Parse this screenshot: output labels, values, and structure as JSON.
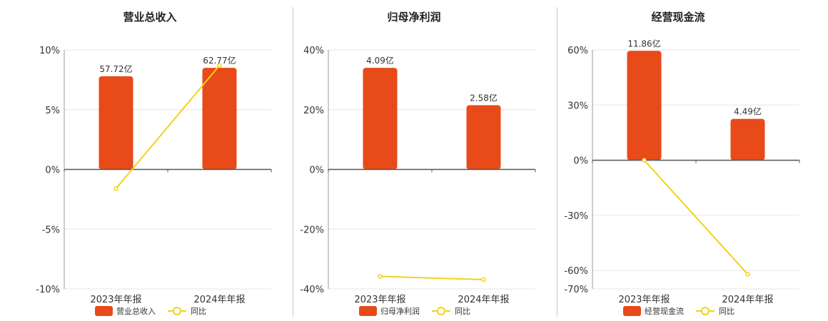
{
  "chart_data": [
    {
      "type": "bar",
      "title": "营业总收入",
      "categories": [
        "2023年年报",
        "2024年年报"
      ],
      "bar_labels": [
        "57.72亿",
        "62.77亿"
      ],
      "ylim": [
        -10,
        10
      ],
      "yticks": [
        10,
        5,
        0,
        -5,
        -10
      ],
      "ytick_labels": [
        "10%",
        "5%",
        "0%",
        "-5%",
        "-10%"
      ],
      "grid": true,
      "legend_position": "bottom",
      "series": [
        {
          "name": "营业总收入",
          "kind": "bar",
          "color": "#e84a1a",
          "values": [
            7.8,
            8.5
          ]
        },
        {
          "name": "同比",
          "kind": "line",
          "color": "#f2d21a",
          "values": [
            -1.6,
            8.7
          ]
        }
      ]
    },
    {
      "type": "bar",
      "title": "归母净利润",
      "categories": [
        "2023年年报",
        "2024年年报"
      ],
      "bar_labels": [
        "4.09亿",
        "2.58亿"
      ],
      "ylim": [
        -40,
        40
      ],
      "yticks": [
        40,
        20,
        0,
        -20,
        -40
      ],
      "ytick_labels": [
        "40%",
        "20%",
        "0%",
        "-20%",
        "-40%"
      ],
      "grid": true,
      "legend_position": "bottom",
      "series": [
        {
          "name": "归母净利润",
          "kind": "bar",
          "color": "#e84a1a",
          "values": [
            34,
            21.5
          ]
        },
        {
          "name": "同比",
          "kind": "line",
          "color": "#f2d21a",
          "values": [
            -35.8,
            -36.9
          ]
        }
      ]
    },
    {
      "type": "bar",
      "title": "经营现金流",
      "categories": [
        "2023年年报",
        "2024年年报"
      ],
      "bar_labels": [
        "11.86亿",
        "4.49亿"
      ],
      "ylim": [
        -70,
        60
      ],
      "yticks": [
        60,
        30,
        0,
        -30,
        -60,
        -70
      ],
      "ytick_labels": [
        "60%",
        "30%",
        "0%",
        "-30%",
        "-60%",
        "-70%"
      ],
      "grid": true,
      "legend_position": "bottom",
      "series": [
        {
          "name": "经营现金流",
          "kind": "bar",
          "color": "#e84a1a",
          "values": [
            59.5,
            22.5
          ]
        },
        {
          "name": "同比",
          "kind": "line",
          "color": "#f2d21a",
          "values": [
            0,
            -62
          ]
        }
      ]
    }
  ]
}
